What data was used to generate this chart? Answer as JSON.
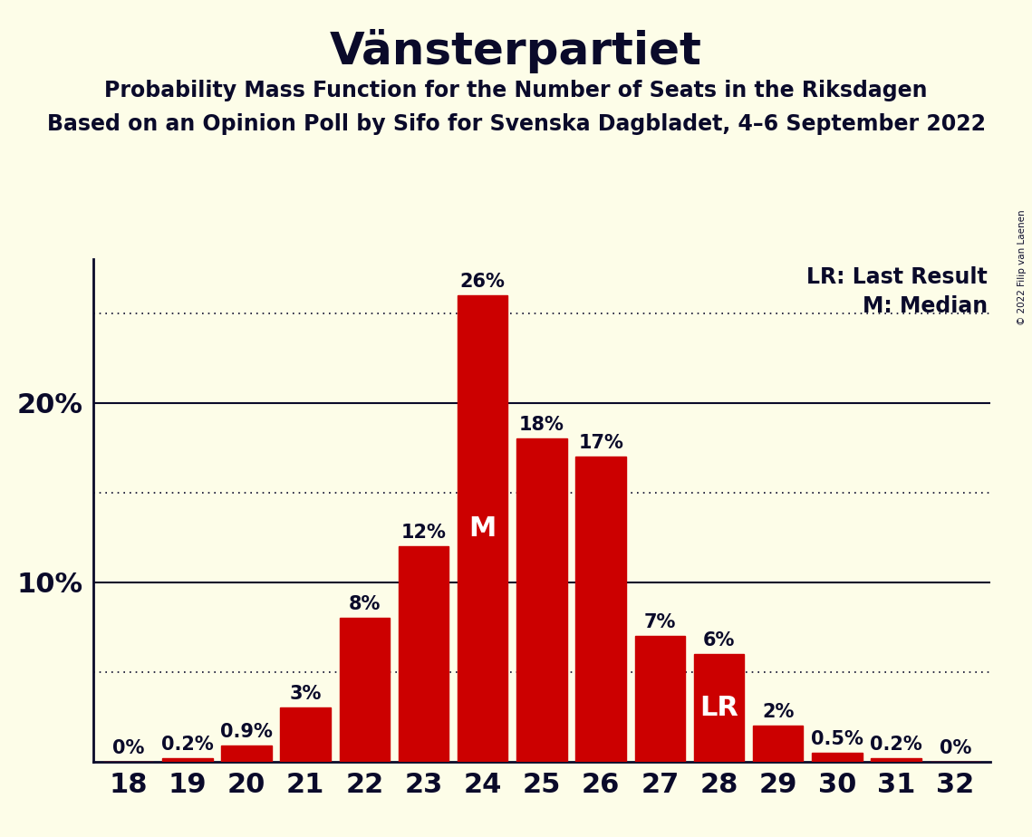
{
  "title": "Vänsterpartiet",
  "subtitle1": "Probability Mass Function for the Number of Seats in the Riksdagen",
  "subtitle2": "Based on an Opinion Poll by Sifo for Svenska Dagbladet, 4–6 September 2022",
  "copyright": "© 2022 Filip van Laenen",
  "seats": [
    18,
    19,
    20,
    21,
    22,
    23,
    24,
    25,
    26,
    27,
    28,
    29,
    30,
    31,
    32
  ],
  "probabilities": [
    0.0,
    0.2,
    0.9,
    3.0,
    8.0,
    12.0,
    26.0,
    18.0,
    17.0,
    7.0,
    6.0,
    2.0,
    0.5,
    0.2,
    0.0
  ],
  "labels": [
    "0%",
    "0.2%",
    "0.9%",
    "3%",
    "8%",
    "12%",
    "26%",
    "18%",
    "17%",
    "7%",
    "6%",
    "2%",
    "0.5%",
    "0.2%",
    "0%"
  ],
  "bar_color": "#CC0000",
  "background_color": "#FDFDE8",
  "text_color": "#0A0A2A",
  "median_seat": 24,
  "last_result_seat": 28,
  "legend_lr": "LR: Last Result",
  "legend_m": "M: Median",
  "ylim": [
    0,
    28
  ],
  "solid_grid_lines": [
    10,
    20
  ],
  "dotted_grid_lines": [
    5,
    15,
    25
  ],
  "title_fontsize": 36,
  "subtitle_fontsize": 17,
  "axis_label_fontsize": 22,
  "bar_label_fontsize": 15,
  "legend_fontsize": 17,
  "inner_label_fontsize": 22
}
